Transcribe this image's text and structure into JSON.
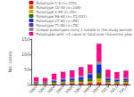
{
  "chart_data": {
    "type": "bar",
    "stacked": true,
    "categories": [
      "2002",
      "2003",
      "2004",
      "2005",
      "2006",
      "2007",
      "2008",
      "2009",
      "2010",
      "2011",
      "2012"
    ],
    "series": [
      {
        "name": "Pulsotype 1-9 (n=170)",
        "color": "#cc0000",
        "values": [
          2,
          2,
          3,
          3,
          4,
          4,
          3,
          5,
          3,
          3,
          3
        ]
      },
      {
        "name": "Pulsotype 10-30 (n=108)",
        "color": "#dd6600",
        "values": [
          1,
          1,
          1,
          2,
          2,
          2,
          3,
          5,
          2,
          2,
          2
        ]
      },
      {
        "name": "Pulsotype 4-55 (n=52)",
        "color": "#ccaa00",
        "values": [
          1,
          1,
          2,
          2,
          3,
          3,
          5,
          10,
          3,
          2,
          3
        ]
      },
      {
        "name": "Pulsotype 56-64 (n=71/101)",
        "color": "#336600",
        "values": [
          2,
          2,
          3,
          4,
          5,
          6,
          8,
          18,
          5,
          4,
          5
        ]
      },
      {
        "name": "Pulsotype 27-60 (n=55)",
        "color": "#1133cc",
        "values": [
          2,
          2,
          4,
          6,
          6,
          9,
          14,
          28,
          7,
          5,
          6
        ]
      },
      {
        "name": "Pulsotype 71-80 (n=78)",
        "color": "#663399",
        "values": [
          1,
          0,
          1,
          1,
          1,
          1,
          2,
          3,
          1,
          1,
          1
        ]
      },
      {
        "name": "Unique pulsotypes (only 1 isolate in the study period)",
        "color": "#888888",
        "values": [
          1,
          1,
          2,
          2,
          2,
          3,
          3,
          6,
          2,
          2,
          2
        ]
      },
      {
        "name": "Pulsotypes with >2 cases in total over the entire year",
        "color": "#ee1188",
        "values": [
          14,
          13,
          20,
          22,
          24,
          30,
          28,
          60,
          26,
          22,
          24
        ]
      }
    ],
    "ylabel": "No. cases",
    "ylim": [
      0,
      150
    ],
    "yticks": [
      0,
      50,
      100,
      150
    ],
    "legend": "upper right",
    "grid": false
  }
}
